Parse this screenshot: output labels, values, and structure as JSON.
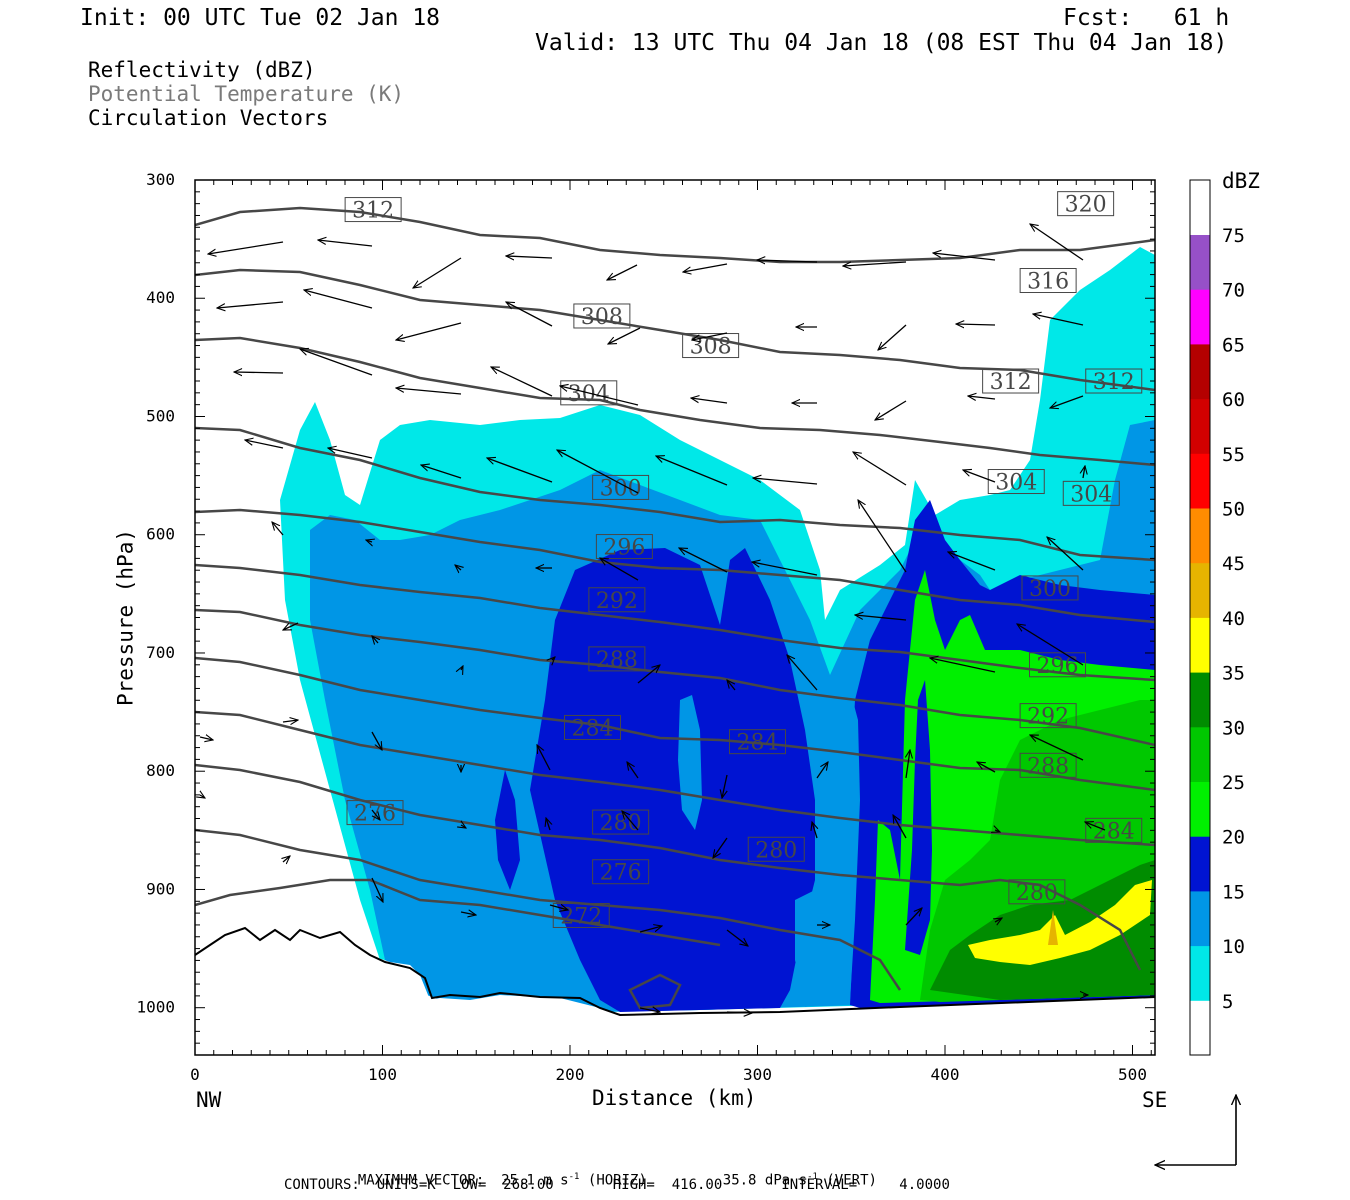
{
  "header": {
    "init": "Init: 00 UTC Tue 02 Jan 18",
    "fcst": "Fcst:   61 h",
    "valid": "Valid: 13 UTC Thu 04 Jan 18 (08 EST Thu 04 Jan 18)"
  },
  "fields": [
    {
      "label": "Reflectivity (dBZ)",
      "color": "#000000"
    },
    {
      "label": "Potential Temperature (K)",
      "color": "#7a7a7a"
    },
    {
      "label": "Circulation Vectors",
      "color": "#000000"
    }
  ],
  "colors": {
    "c5": "#00e8e8",
    "c10": "#0096e6",
    "c15": "#0014d2",
    "c20": "#00f000",
    "c25": "#00c800",
    "c30": "#008c00",
    "c35": "#ffff00",
    "c40": "#e6b400",
    "c45": "#ff8c00",
    "c50": "#ff0000",
    "c55": "#d20000",
    "c60": "#b40000",
    "c65": "#ff00ff",
    "c70": "#9650c8",
    "contour": "#474747"
  },
  "chart_data": {
    "type": "heatmap",
    "description_type": "vertical cross-section: filled reflectivity contours, potential temperature isolines, circulation vectors",
    "xlabel": "Distance (km)",
    "ylabel": "Pressure (hPa)",
    "xlim": [
      0,
      512
    ],
    "ylim": [
      1040,
      300
    ],
    "x_ticks": [
      0,
      100,
      200,
      300,
      400,
      500
    ],
    "y_ticks": [
      300,
      400,
      500,
      600,
      700,
      800,
      900,
      1000
    ],
    "x_end_labels": {
      "left": "NW",
      "right": "SE"
    },
    "colorbar": {
      "title": "dBZ",
      "levels": [
        5,
        10,
        15,
        20,
        25,
        30,
        35,
        40,
        45,
        50,
        55,
        60,
        65,
        70,
        75
      ],
      "tick_labels": [
        "75",
        "70",
        "65",
        "60",
        "55",
        "50",
        "45",
        "40",
        "35",
        "30",
        "25",
        "20",
        "15",
        "10",
        "5"
      ]
    },
    "theta_contour_labels": [
      {
        "value": "312",
        "x": 95,
        "p": 325
      },
      {
        "value": "320",
        "x": 475,
        "p": 320
      },
      {
        "value": "316",
        "x": 455,
        "p": 385
      },
      {
        "value": "308",
        "x": 217,
        "p": 415
      },
      {
        "value": "308",
        "x": 275,
        "p": 440
      },
      {
        "value": "312",
        "x": 435,
        "p": 470
      },
      {
        "value": "312",
        "x": 490,
        "p": 470
      },
      {
        "value": "304",
        "x": 210,
        "p": 480
      },
      {
        "value": "304",
        "x": 438,
        "p": 555
      },
      {
        "value": "304",
        "x": 478,
        "p": 565
      },
      {
        "value": "300",
        "x": 227,
        "p": 560
      },
      {
        "value": "296",
        "x": 229,
        "p": 610
      },
      {
        "value": "300",
        "x": 456,
        "p": 645
      },
      {
        "value": "292",
        "x": 225,
        "p": 655
      },
      {
        "value": "296",
        "x": 460,
        "p": 710
      },
      {
        "value": "288",
        "x": 225,
        "p": 705
      },
      {
        "value": "292",
        "x": 455,
        "p": 753
      },
      {
        "value": "284",
        "x": 212,
        "p": 763
      },
      {
        "value": "284",
        "x": 300,
        "p": 775
      },
      {
        "value": "288",
        "x": 455,
        "p": 795
      },
      {
        "value": "276",
        "x": 96,
        "p": 835
      },
      {
        "value": "280",
        "x": 227,
        "p": 843
      },
      {
        "value": "284",
        "x": 490,
        "p": 850
      },
      {
        "value": "280",
        "x": 310,
        "p": 866
      },
      {
        "value": "276",
        "x": 227,
        "p": 885
      },
      {
        "value": "280",
        "x": 449,
        "p": 902
      },
      {
        "value": "272",
        "x": 206,
        "p": 922
      }
    ],
    "max_vector": {
      "horiz": "25.1 m s-1",
      "vert": "35.8 dPa s-1"
    },
    "contours": {
      "units": "K",
      "low": 268.0,
      "high": 416.0,
      "interval": 4.0
    }
  },
  "footer": {
    "max_vector_label": "MAXIMUM VECTOR:",
    "horiz_value": "25.1",
    "horiz_units_pre": "m s",
    "horiz_exp": "-1",
    "horiz_suffix": "(HORIZ)",
    "vert_value": "35.8",
    "vert_units_pre": "dPa s",
    "vert_exp": "-1",
    "vert_suffix": "(VERT)",
    "contours_line": "CONTOURS:  UNITS=K  LOW=  268.00       HIGH=  416.00       INTERVAL=     4.0000"
  }
}
